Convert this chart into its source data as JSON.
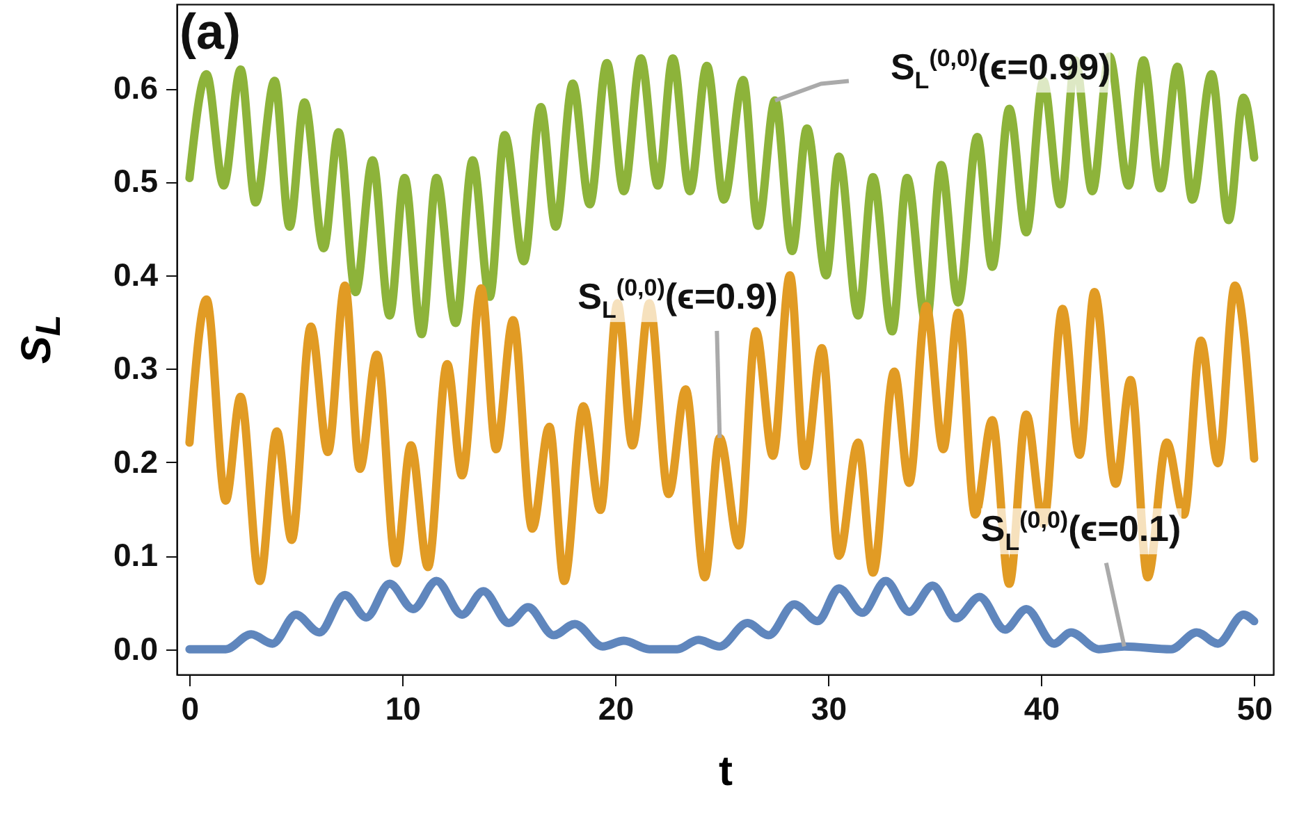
{
  "chart_data": {
    "type": "line",
    "xlabel": "t",
    "ylabel": "S$_{L}$",
    "xlim": [
      -0.6,
      50.9
    ],
    "ylim": [
      -0.027,
      0.69
    ],
    "xticks": [
      0,
      10,
      20,
      30,
      40,
      50
    ],
    "yticks": [
      {
        "value": 0,
        "label": "0.0"
      },
      0.1,
      0.2,
      0.3,
      0.4,
      0.5,
      0.6
    ],
    "grid": false,
    "line_style": "solid",
    "marker": "none",
    "annotations": [
      "(a)",
      {
        "text": "S$_{L}$$^{(0,0)}$(ϵ=0.99)",
        "x": 27.5,
        "y": 0.587
      },
      {
        "text": "S$_{L}$$^{(0,0)}$(ϵ=0.9)",
        "x": 24.9,
        "y": 0.226
      },
      {
        "text": "S$_{L}$$^{(0,0)}$(ϵ=0.1)",
        "x": 43.9,
        "y": 0.003
      }
    ],
    "series": [
      {
        "color": "#8db33a",
        "x": [
          0,
          0.8,
          1.6,
          2.4,
          3.1,
          4.0,
          4.7,
          5.4,
          6.3,
          7.0,
          7.8,
          8.6,
          9.4,
          10.1,
          10.9,
          11.6,
          12.5,
          13.3,
          14.1,
          14.8,
          15.7,
          16.5,
          17.2,
          18.0,
          18.8,
          19.6,
          20.4,
          21.2,
          22.0,
          22.7,
          23.5,
          24.3,
          25.1,
          26.0,
          26.7,
          27.5,
          28.3,
          29.0,
          29.9,
          30.5,
          31.4,
          32.1,
          33.0,
          33.7,
          34.6,
          35.3,
          36.1,
          37.0,
          37.7,
          38.5,
          39.3,
          40.1,
          40.9,
          41.6,
          42.4,
          43.2,
          44.1,
          44.8,
          45.6,
          46.4,
          47.1,
          48.0,
          48.8,
          49.5,
          50
        ],
        "values": [
          0.504,
          0.615,
          0.496,
          0.62,
          0.478,
          0.608,
          0.452,
          0.585,
          0.429,
          0.553,
          0.382,
          0.523,
          0.357,
          0.504,
          0.337,
          0.504,
          0.349,
          0.523,
          0.377,
          0.55,
          0.415,
          0.58,
          0.452,
          0.605,
          0.476,
          0.627,
          0.49,
          0.632,
          0.496,
          0.632,
          0.49,
          0.624,
          0.481,
          0.609,
          0.453,
          0.587,
          0.426,
          0.557,
          0.4,
          0.527,
          0.357,
          0.505,
          0.34,
          0.504,
          0.348,
          0.518,
          0.371,
          0.548,
          0.409,
          0.578,
          0.446,
          0.608,
          0.476,
          0.63,
          0.49,
          0.634,
          0.496,
          0.63,
          0.493,
          0.623,
          0.481,
          0.615,
          0.459,
          0.59,
          0.526
        ]
      },
      {
        "color": "#e19b24",
        "x": [
          0,
          0.8,
          1.7,
          2.4,
          3.3,
          4.1,
          4.8,
          5.7,
          6.5,
          7.3,
          8.0,
          8.8,
          9.7,
          10.4,
          11.2,
          12.1,
          12.8,
          13.7,
          14.4,
          15.2,
          16.1,
          16.9,
          17.6,
          18.5,
          19.3,
          20.1,
          20.8,
          21.6,
          22.5,
          23.3,
          24.2,
          24.9,
          25.8,
          26.6,
          27.4,
          28.2,
          28.9,
          29.7,
          30.5,
          31.4,
          32.1,
          33.1,
          33.8,
          34.6,
          35.4,
          36.1,
          36.9,
          37.7,
          38.5,
          39.3,
          40.1,
          41.0,
          41.8,
          42.5,
          43.5,
          44.2,
          45.0,
          45.9,
          46.7,
          47.5,
          48.3,
          49.1,
          50
        ],
        "values": [
          0.221,
          0.374,
          0.159,
          0.27,
          0.073,
          0.233,
          0.117,
          0.345,
          0.211,
          0.389,
          0.193,
          0.315,
          0.092,
          0.218,
          0.088,
          0.305,
          0.186,
          0.386,
          0.214,
          0.352,
          0.129,
          0.238,
          0.073,
          0.26,
          0.149,
          0.37,
          0.218,
          0.37,
          0.166,
          0.278,
          0.077,
          0.226,
          0.111,
          0.34,
          0.207,
          0.4,
          0.196,
          0.322,
          0.1,
          0.221,
          0.082,
          0.297,
          0.178,
          0.367,
          0.214,
          0.36,
          0.144,
          0.245,
          0.07,
          0.251,
          0.134,
          0.364,
          0.208,
          0.382,
          0.177,
          0.288,
          0.077,
          0.221,
          0.144,
          0.33,
          0.199,
          0.389,
          0.204
        ]
      },
      {
        "color": "#5f86bd",
        "x": [
          0,
          1.7,
          2.9,
          3.9,
          5.0,
          6.1,
          7.3,
          8.3,
          9.4,
          10.5,
          11.6,
          12.8,
          13.8,
          15.0,
          15.9,
          17.1,
          18.1,
          19.4,
          20.4,
          21.6,
          22.9,
          23.9,
          24.9,
          26.2,
          27.2,
          28.4,
          29.5,
          30.5,
          31.6,
          32.7,
          33.8,
          34.9,
          36.0,
          37.1,
          38.3,
          39.3,
          40.6,
          41.4,
          42.7,
          43.9,
          46.1,
          47.3,
          48.3,
          49.5,
          50
        ],
        "values": [
          0.0,
          0.0,
          0.016,
          0.006,
          0.037,
          0.018,
          0.058,
          0.034,
          0.07,
          0.043,
          0.073,
          0.037,
          0.062,
          0.028,
          0.045,
          0.015,
          0.027,
          0.003,
          0.009,
          0.0,
          0.0,
          0.01,
          0.003,
          0.028,
          0.015,
          0.048,
          0.03,
          0.065,
          0.039,
          0.073,
          0.04,
          0.068,
          0.033,
          0.056,
          0.021,
          0.043,
          0.006,
          0.018,
          0.0,
          0.003,
          0.0,
          0.018,
          0.006,
          0.037,
          0.03
        ]
      }
    ]
  }
}
